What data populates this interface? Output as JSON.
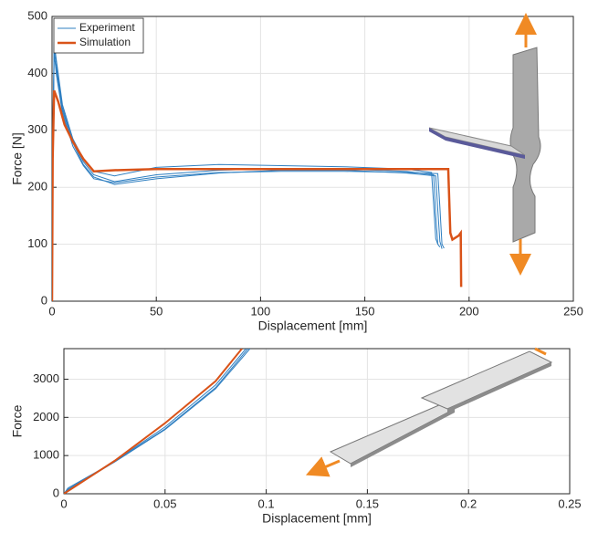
{
  "chart_data": [
    {
      "type": "line",
      "xlabel": "Displacement [mm]",
      "ylabel": "Force [N]",
      "xlim": [
        0,
        250
      ],
      "ylim": [
        0,
        500
      ],
      "xticks": [
        0,
        50,
        100,
        150,
        200,
        250
      ],
      "yticks": [
        0,
        100,
        200,
        300,
        400,
        500
      ],
      "grid": true,
      "legend": "upper left",
      "series": [
        {
          "name": "Experiment",
          "color": "#2f7fc1",
          "linewidth": 1,
          "x": [
            0,
            0.5,
            1,
            2,
            5,
            10,
            15,
            20,
            30,
            50,
            80,
            110,
            140,
            170,
            183,
            184,
            185,
            186
          ],
          "values": [
            0,
            300,
            450,
            420,
            340,
            280,
            245,
            222,
            210,
            222,
            230,
            233,
            232,
            228,
            222,
            150,
            100,
            95
          ]
        },
        {
          "name": "Experiment",
          "color": "#2f7fc1",
          "linewidth": 1,
          "x": [
            0,
            0.5,
            1,
            2,
            5,
            10,
            15,
            20,
            30,
            50,
            80,
            110,
            140,
            170,
            184,
            185,
            186,
            187
          ],
          "values": [
            0,
            280,
            430,
            410,
            335,
            278,
            240,
            218,
            205,
            215,
            225,
            230,
            230,
            225,
            220,
            160,
            105,
            92
          ]
        },
        {
          "name": "Experiment",
          "color": "#2f7fc1",
          "linewidth": 1,
          "x": [
            0,
            0.5,
            1,
            2,
            5,
            10,
            15,
            20,
            30,
            50,
            80,
            110,
            140,
            170,
            182,
            183,
            184,
            185
          ],
          "values": [
            0,
            310,
            455,
            425,
            345,
            285,
            250,
            228,
            220,
            235,
            240,
            238,
            236,
            232,
            226,
            170,
            110,
            100
          ]
        },
        {
          "name": "Experiment",
          "color": "#2f7fc1",
          "linewidth": 1,
          "x": [
            0,
            0.5,
            1,
            2,
            5,
            10,
            15,
            20,
            30,
            50,
            80,
            110,
            140,
            170,
            185,
            186,
            187,
            188
          ],
          "values": [
            0,
            290,
            440,
            400,
            330,
            272,
            238,
            215,
            208,
            218,
            226,
            228,
            228,
            226,
            224,
            165,
            100,
            93
          ]
        },
        {
          "name": "Simulation",
          "color": "#d95319",
          "linewidth": 2.5,
          "x": [
            0,
            0.3,
            1,
            3,
            6,
            10,
            15,
            20,
            30,
            50,
            100,
            150,
            190,
            191,
            192,
            195,
            196,
            196.2
          ],
          "values": [
            0,
            250,
            370,
            350,
            310,
            280,
            250,
            228,
            230,
            232,
            232,
            232,
            232,
            120,
            108,
            115,
            120,
            25
          ]
        }
      ]
    },
    {
      "type": "line",
      "xlabel": "Displacement [mm]",
      "ylabel": "Force",
      "xlim": [
        0,
        0.25
      ],
      "ylim": [
        0,
        3800
      ],
      "xticks": [
        0,
        0.05,
        0.1,
        0.15,
        0.2,
        0.25
      ],
      "yticks": [
        0,
        1000,
        2000,
        3000
      ],
      "grid": true,
      "series": [
        {
          "name": "Experiment",
          "color": "#2f7fc1",
          "linewidth": 1,
          "x": [
            0,
            0.002,
            0.025,
            0.05,
            0.075,
            0.09
          ],
          "values": [
            0,
            120,
            850,
            1750,
            2850,
            3800
          ]
        },
        {
          "name": "Experiment",
          "color": "#2f7fc1",
          "linewidth": 1,
          "x": [
            0,
            0.002,
            0.025,
            0.05,
            0.075,
            0.091
          ],
          "values": [
            0,
            150,
            840,
            1700,
            2780,
            3800
          ]
        },
        {
          "name": "Experiment",
          "color": "#2f7fc1",
          "linewidth": 1,
          "x": [
            0,
            0.002,
            0.025,
            0.05,
            0.075,
            0.092
          ],
          "values": [
            0,
            100,
            830,
            1680,
            2750,
            3800
          ]
        },
        {
          "name": "Simulation",
          "color": "#d95319",
          "linewidth": 2,
          "x": [
            0,
            0.025,
            0.05,
            0.075,
            0.088
          ],
          "values": [
            0,
            860,
            1850,
            2950,
            3800
          ]
        }
      ]
    }
  ]
}
